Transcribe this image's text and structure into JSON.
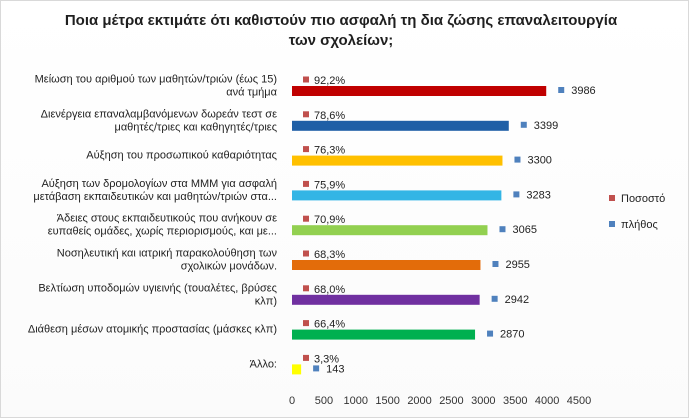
{
  "chart_data": {
    "type": "bar",
    "orientation": "horizontal",
    "title": "Ποια μέτρα εκτιμάτε ότι καθιστούν πιο ασφαλή τη δια ζώσης επαναλειτουργία των σχολείων;",
    "title_lines": [
      "Ποια μέτρα εκτιμάτε ότι καθιστούν πιο ασφαλή τη δια ζώσης επαναλειτουργία",
      "των σχολείων;"
    ],
    "categories": [
      [
        "Μείωση του αριθμού των μαθητών/τριών (έως 15)",
        "ανά τμήμα"
      ],
      [
        "Διενέργεια επαναλαμβανόμενων δωρεάν τεστ σε",
        "μαθητές/τριες και καθηγητές/τριες"
      ],
      [
        "Αύξηση του προσωπικού καθαριότητας"
      ],
      [
        "Αύξηση των δρομολογίων στα ΜΜΜ για ασφαλή",
        "μετάβαση εκπαιδευτικών και μαθητών/τριών στα..."
      ],
      [
        "Άδειες στους εκπαιδευτικούς που ανήκουν σε",
        "ευπαθείς ομάδες, χωρίς περιορισμούς, και με..."
      ],
      [
        "Νοσηλευτική και ιατρική παρακολούθηση των",
        "σχολικών μονάδων."
      ],
      [
        "Βελτίωση υποδομών υγιεινής (τουαλέτες, βρύσες",
        "κλπ)"
      ],
      [
        "Διάθεση μέσων ατομικής προστασίας (μάσκες κλπ)"
      ],
      [
        "Άλλο:"
      ]
    ],
    "series": [
      {
        "name": "πλήθος",
        "values": [
          3986,
          3399,
          3300,
          3283,
          3065,
          2955,
          2942,
          2870,
          143
        ],
        "labels": [
          "3986",
          "3399",
          "3300",
          "3283",
          "3065",
          "2955",
          "2942",
          "2870",
          "143"
        ]
      },
      {
        "name": "Ποσοστό",
        "values": [
          92.2,
          78.6,
          76.3,
          75.9,
          70.9,
          68.3,
          68.0,
          66.4,
          3.3
        ],
        "labels": [
          "92,2%",
          "78,6%",
          "76,3%",
          "75,9%",
          "70,9%",
          "68,3%",
          "68,0%",
          "66,4%",
          "3,3%"
        ]
      }
    ],
    "bar_colors": [
      "#c00000",
      "#1f5fa6",
      "#ffc000",
      "#33b5e5",
      "#92d050",
      "#e36c0a",
      "#7030a0",
      "#00b050",
      "#ffff00"
    ],
    "legend": [
      {
        "name": "Ποσοστό",
        "color": "#c0504d"
      },
      {
        "name": "πλήθος",
        "color": "#4f81bd"
      }
    ],
    "xlim": [
      0,
      4500
    ],
    "xticks": [
      0,
      500,
      1000,
      1500,
      2000,
      2500,
      3000,
      3500,
      4000,
      4500
    ],
    "xtick_labels": [
      "0",
      "500",
      "1000",
      "1500",
      "2000",
      "2500",
      "3000",
      "3500",
      "4000",
      "4500"
    ],
    "legend_position": "right",
    "grid": false
  }
}
